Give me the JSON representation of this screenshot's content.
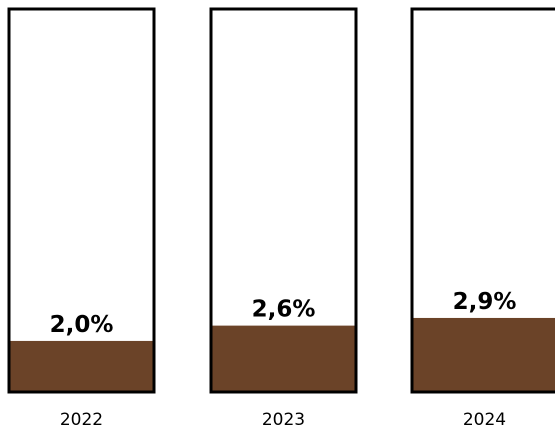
{
  "chart_data": {
    "type": "bar",
    "categories": [
      "2022",
      "2023",
      "2024"
    ],
    "values": [
      2.0,
      2.6,
      2.9
    ],
    "value_labels": [
      "2,0%",
      "2,6%",
      "2,9%"
    ],
    "title": "",
    "xlabel": "",
    "ylabel": "",
    "ylim": [
      0,
      15
    ],
    "grid": false,
    "legend": "none",
    "colors": {
      "fill": "#6b4328",
      "border": "#000000",
      "background": "#ffffff"
    }
  }
}
